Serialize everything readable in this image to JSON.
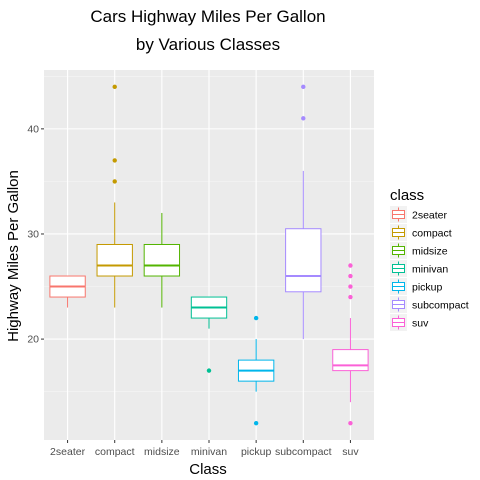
{
  "chart_data": {
    "type": "boxplot",
    "title_lines": [
      "Cars Highway Miles Per Gallon",
      "by Various Classes"
    ],
    "xlabel": "Class",
    "ylabel": "Highway Miles Per Gallon",
    "ylim": [
      10.4,
      45.6
    ],
    "yticks": [
      20,
      30,
      40
    ],
    "grid": true,
    "legend": {
      "title": "class",
      "position": "right"
    },
    "categories": [
      "2seater",
      "compact",
      "midsize",
      "minivan",
      "pickup",
      "subcompact",
      "suv"
    ],
    "colors": [
      "#F8766D",
      "#C49A00",
      "#53B400",
      "#00C094",
      "#00B6EB",
      "#A58AFF",
      "#FB61D7"
    ],
    "series": [
      {
        "name": "2seater",
        "lower": 23,
        "q1": 24,
        "median": 25,
        "q3": 26,
        "upper": 26,
        "outliers": []
      },
      {
        "name": "compact",
        "lower": 23,
        "q1": 26,
        "median": 27,
        "q3": 29,
        "upper": 33,
        "outliers": [
          35,
          37,
          44
        ]
      },
      {
        "name": "midsize",
        "lower": 23,
        "q1": 26,
        "median": 27,
        "q3": 29,
        "upper": 32,
        "outliers": []
      },
      {
        "name": "minivan",
        "lower": 21,
        "q1": 22,
        "median": 23,
        "q3": 24,
        "upper": 24,
        "outliers": [
          17
        ]
      },
      {
        "name": "pickup",
        "lower": 15,
        "q1": 16,
        "median": 17,
        "q3": 18,
        "upper": 20,
        "outliers": [
          12,
          22
        ]
      },
      {
        "name": "subcompact",
        "lower": 20,
        "q1": 24.5,
        "median": 26,
        "q3": 30.5,
        "upper": 36,
        "outliers": [
          41,
          44
        ]
      },
      {
        "name": "suv",
        "lower": 14,
        "q1": 17,
        "median": 17.5,
        "q3": 19,
        "upper": 22,
        "outliers": [
          12,
          24,
          25,
          26,
          27
        ]
      }
    ]
  }
}
